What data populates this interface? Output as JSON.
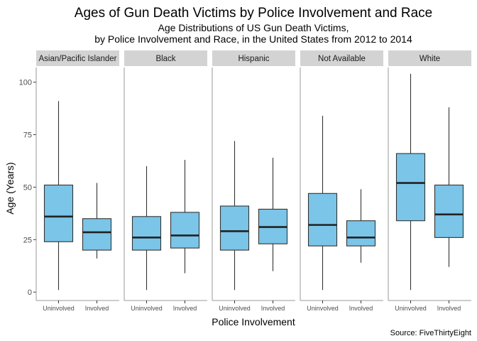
{
  "chart_data": {
    "type": "boxplot",
    "title": "Ages of Gun Death Victims by Police Involvement and Race",
    "subtitle": "Age Distributions of US Gun Death Victims,\nby Police Involvement and Race, in the United States from 2012 to 2014",
    "xlabel": "Police Involvement",
    "ylabel": "Age (Years)",
    "caption": "Source: FiveThirtyEight",
    "ylim": [
      -4,
      107
    ],
    "yticks": [
      0,
      25,
      50,
      75,
      100
    ],
    "box_color": "#7ac5e8",
    "strip_color": "#d3d3d3",
    "facets": [
      {
        "label": "Asian/Pacific Islander",
        "boxes": [
          {
            "category": "Uninvolved",
            "min": 1,
            "q1": 24,
            "median": 36,
            "q3": 51,
            "max": 91
          },
          {
            "category": "Involved",
            "min": 16,
            "q1": 20,
            "median": 28.5,
            "q3": 35,
            "max": 52
          }
        ]
      },
      {
        "label": "Black",
        "boxes": [
          {
            "category": "Uninvolved",
            "min": 1,
            "q1": 20,
            "median": 26,
            "q3": 36,
            "max": 60
          },
          {
            "category": "Involved",
            "min": 9,
            "q1": 21,
            "median": 27,
            "q3": 38,
            "max": 63
          }
        ]
      },
      {
        "label": "Hispanic",
        "boxes": [
          {
            "category": "Uninvolved",
            "min": 1,
            "q1": 20,
            "median": 29,
            "q3": 41,
            "max": 72
          },
          {
            "category": "Involved",
            "min": 10,
            "q1": 23,
            "median": 31,
            "q3": 39.5,
            "max": 64
          }
        ]
      },
      {
        "label": "Not Available",
        "boxes": [
          {
            "category": "Uninvolved",
            "min": 1,
            "q1": 22,
            "median": 32,
            "q3": 47,
            "max": 84
          },
          {
            "category": "Involved",
            "min": 14,
            "q1": 22,
            "median": 26,
            "q3": 34,
            "max": 49
          }
        ]
      },
      {
        "label": "White",
        "boxes": [
          {
            "category": "Uninvolved",
            "min": 1,
            "q1": 34,
            "median": 52,
            "q3": 66,
            "max": 104
          },
          {
            "category": "Involved",
            "min": 12,
            "q1": 26,
            "median": 37,
            "q3": 51,
            "max": 88
          }
        ]
      }
    ]
  }
}
